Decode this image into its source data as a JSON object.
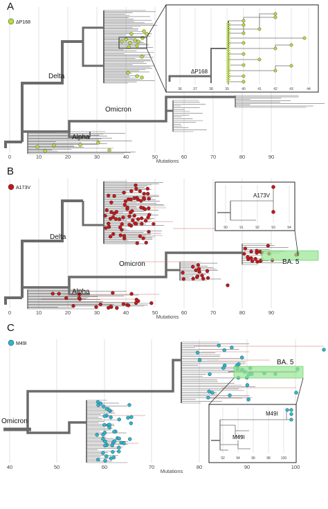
{
  "colors": {
    "branch": "#6b6b6b",
    "grid": "#d4d4d4",
    "lineage_highlight": "#cc6b6b",
    "panel_a_marker": "#b4dd3a",
    "panel_b_marker": "#c0181b",
    "panel_c_marker": "#29b7d0",
    "ba5_box": "#97e592"
  },
  "panels": [
    {
      "letter": "A",
      "mutation": "ΔP168",
      "marker_color": "#b4dd3a",
      "clades": [
        "Delta",
        "Omicron",
        "Alpha"
      ],
      "axis_title": "Mutations",
      "ticks": [
        "0",
        "10",
        "20",
        "30",
        "40",
        "50",
        "60",
        "70",
        "80",
        "90"
      ],
      "inset": {
        "label": "ΔP168",
        "ticks": [
          "36",
          "37",
          "38",
          "39",
          "40",
          "41",
          "42",
          "43",
          "44"
        ]
      }
    },
    {
      "letter": "B",
      "mutation": "A173V",
      "marker_color": "#c0181b",
      "clades": [
        "Delta",
        "Omicron",
        "Alpha"
      ],
      "lineage_box": "BA. 5",
      "axis_title": "Mutations",
      "ticks": [
        "0",
        "10",
        "20",
        "30",
        "40",
        "50",
        "60",
        "70",
        "80",
        "90"
      ],
      "inset": {
        "label": "A173V",
        "ticks": [
          "90",
          "91",
          "92",
          "93",
          "94"
        ]
      }
    },
    {
      "letter": "C",
      "mutation": "M49I",
      "marker_color": "#29b7d0",
      "clades": [
        "Omicron"
      ],
      "lineage_box": "BA. 5",
      "axis_title": "Mutations",
      "ticks": [
        "40",
        "50",
        "60",
        "70",
        "80",
        "90",
        "100"
      ],
      "inset": {
        "labels": [
          "M49I",
          "M49I"
        ],
        "ticks": [
          "92",
          "94",
          "96",
          "98",
          "100"
        ]
      }
    }
  ]
}
